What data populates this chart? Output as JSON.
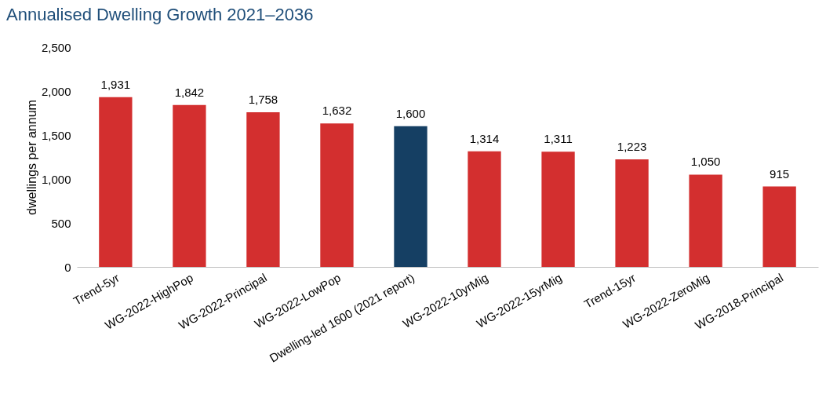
{
  "chart_data": {
    "type": "bar",
    "title": "Annualised Dwelling Growth 2021–2036",
    "ylabel": "dwellings per annum",
    "categories": [
      "Trend-5yr",
      "WG-2022-HighPop",
      "WG-2022-Principal",
      "WG-2022-LowPop",
      "Dwelling-led 1600 (2021 report)",
      "WG-2022-10yrMig",
      "WG-2022-15yrMig",
      "Trend-15yr",
      "WG-2022-ZeroMig",
      "WG-2018-Principal"
    ],
    "values": [
      1931,
      1842,
      1758,
      1632,
      1600,
      1314,
      1311,
      1223,
      1050,
      915
    ],
    "value_labels": [
      "1,931",
      "1,842",
      "1,758",
      "1,632",
      "1,600",
      "1,314",
      "1,311",
      "1,223",
      "1,050",
      "915"
    ],
    "colors": [
      "#d32f2f",
      "#d32f2f",
      "#d32f2f",
      "#d32f2f",
      "#153f63",
      "#d32f2f",
      "#d32f2f",
      "#d32f2f",
      "#d32f2f",
      "#d32f2f"
    ],
    "ylim": [
      0,
      2500
    ],
    "yticks": [
      0,
      {
        "value": 500,
        "label": "500"
      },
      {
        "value": 1000,
        "label": "1,000"
      },
      {
        "value": 1500,
        "label": "1,500"
      },
      {
        "value": 2000,
        "label": "2,000"
      },
      {
        "value": 2500,
        "label": "2,500"
      }
    ],
    "grid": false
  }
}
